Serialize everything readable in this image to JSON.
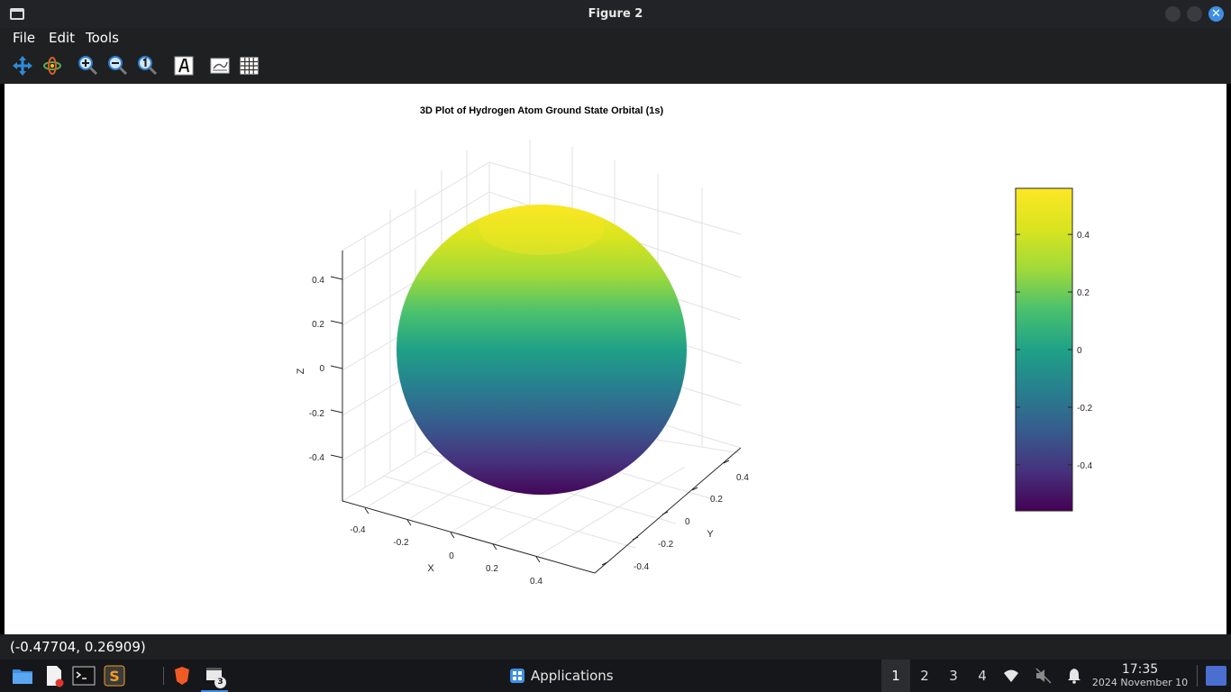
{
  "window": {
    "title": "Figure 2",
    "close_glyph": "✕"
  },
  "menu": {
    "file": "File",
    "edit": "Edit",
    "tools": "Tools"
  },
  "toolbar": {
    "items": [
      "pan-icon",
      "rotate-icon",
      "zoom-in-icon",
      "zoom-out-icon",
      "zoom-reset-icon",
      "text-icon",
      "legend-icon",
      "grid-icon"
    ]
  },
  "chart_data": {
    "type": "surface",
    "title": "3D Plot of Hydrogen Atom Ground State Orbital (1s)",
    "xlabel": "X",
    "ylabel": "Y",
    "zlabel": "Z",
    "x_ticks": [
      "-0.4",
      "-0.2",
      "0",
      "0.2",
      "0.4"
    ],
    "y_ticks": [
      "-0.4",
      "-0.2",
      "0",
      "0.2",
      "0.4"
    ],
    "z_ticks": [
      "0.4",
      "0.2",
      "0",
      "-0.2",
      "-0.4"
    ],
    "colorbar_ticks": [
      "0.4",
      "0.2",
      "0",
      "-0.2",
      "-0.4"
    ],
    "colorbar_range": [
      -0.56,
      0.56
    ],
    "colormap": "viridis",
    "surface": "sphere",
    "radius": 0.56,
    "grid": true
  },
  "status": {
    "coords": "(-0.47704, 0.26909)"
  },
  "taskbar": {
    "applications": "Applications",
    "workspaces": [
      "1",
      "2",
      "3",
      "4"
    ],
    "active_workspace": "1",
    "window_badge": "3",
    "time": "17:35",
    "date": "2024 November 10"
  },
  "colors": {
    "accent": "#3d8fe5",
    "titlebar": "#222326",
    "panel": "#1f2022",
    "taskbar": "#16171a"
  }
}
